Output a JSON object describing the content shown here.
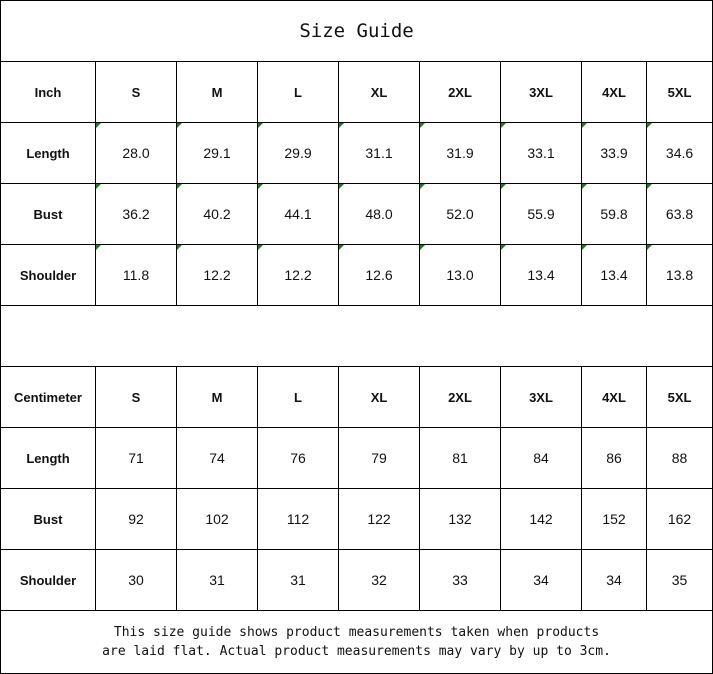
{
  "title": "Size Guide",
  "sizes": [
    "S",
    "M",
    "L",
    "XL",
    "2XL",
    "3XL",
    "4XL",
    "5XL"
  ],
  "inch": {
    "label": "Inch",
    "rows": [
      {
        "label": "Length",
        "values": [
          "28.0",
          "29.1",
          "29.9",
          "31.1",
          "31.9",
          "33.1",
          "33.9",
          "34.6"
        ]
      },
      {
        "label": "Bust",
        "values": [
          "36.2",
          "40.2",
          "44.1",
          "48.0",
          "52.0",
          "55.9",
          "59.8",
          "63.8"
        ]
      },
      {
        "label": "Shoulder",
        "values": [
          "11.8",
          "12.2",
          "12.2",
          "12.6",
          "13.0",
          "13.4",
          "13.4",
          "13.8"
        ]
      }
    ]
  },
  "cm": {
    "label": "Centimeter",
    "rows": [
      {
        "label": "Length",
        "values": [
          "71",
          "74",
          "76",
          "79",
          "81",
          "84",
          "86",
          "88"
        ]
      },
      {
        "label": "Bust",
        "values": [
          "92",
          "102",
          "112",
          "122",
          "132",
          "142",
          "152",
          "162"
        ]
      },
      {
        "label": "Shoulder",
        "values": [
          "30",
          "31",
          "31",
          "32",
          "33",
          "34",
          "34",
          "35"
        ]
      }
    ]
  },
  "note_line1": "This size guide shows product measurements taken when products",
  "note_line2": "are laid flat. Actual product measurements may vary by up to 3cm.",
  "colors": {
    "cell_marker": "#1a7f1a"
  }
}
